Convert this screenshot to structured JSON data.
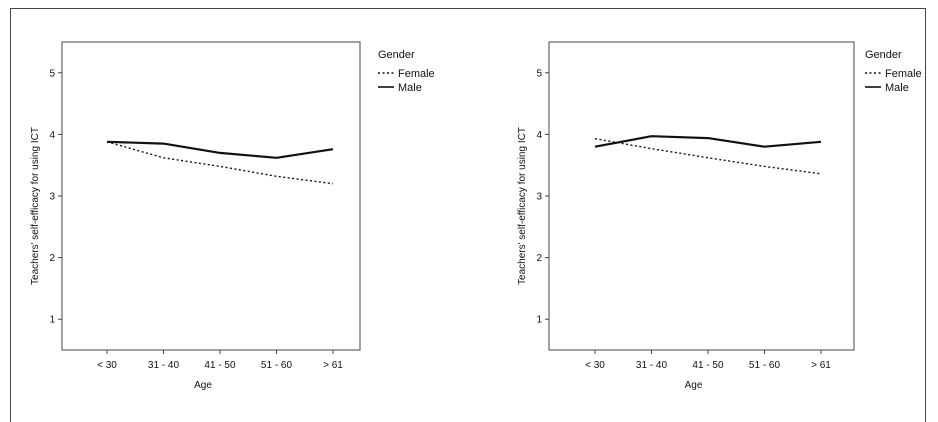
{
  "chart_data": [
    {
      "type": "line",
      "categories": [
        "< 30",
        "31 - 40",
        "41 - 50",
        "51 - 60",
        "> 61"
      ],
      "xlabel": "Age",
      "ylabel": "Teachers' self-efficacy for using ICT",
      "ylim": [
        0.5,
        5.5
      ],
      "yticks": [
        "1",
        "2",
        "3",
        "4",
        "5"
      ],
      "grid": false,
      "legend": {
        "title": "Gender",
        "position": "right"
      },
      "series": [
        {
          "name": "Female",
          "style": "dotted",
          "values": [
            3.88,
            3.62,
            3.48,
            3.32,
            3.2
          ]
        },
        {
          "name": "Male",
          "style": "solid",
          "values": [
            3.88,
            3.85,
            3.7,
            3.62,
            3.76
          ]
        }
      ]
    },
    {
      "type": "line",
      "categories": [
        "< 30",
        "31 - 40",
        "41 - 50",
        "51 - 60",
        "> 61"
      ],
      "xlabel": "Age",
      "ylabel": "Teachers' self-efficacy for using ICT",
      "ylim": [
        0.5,
        5.5
      ],
      "yticks": [
        "1",
        "2",
        "3",
        "4",
        "5"
      ],
      "grid": false,
      "legend": {
        "title": "Gender",
        "position": "right"
      },
      "series": [
        {
          "name": "Female",
          "style": "dotted",
          "values": [
            3.93,
            3.77,
            3.62,
            3.48,
            3.36
          ]
        },
        {
          "name": "Male",
          "style": "solid",
          "values": [
            3.8,
            3.97,
            3.94,
            3.8,
            3.88
          ]
        }
      ]
    }
  ],
  "colors": {
    "line": "#111111",
    "axis": "#444444",
    "background": "#ffffff"
  }
}
